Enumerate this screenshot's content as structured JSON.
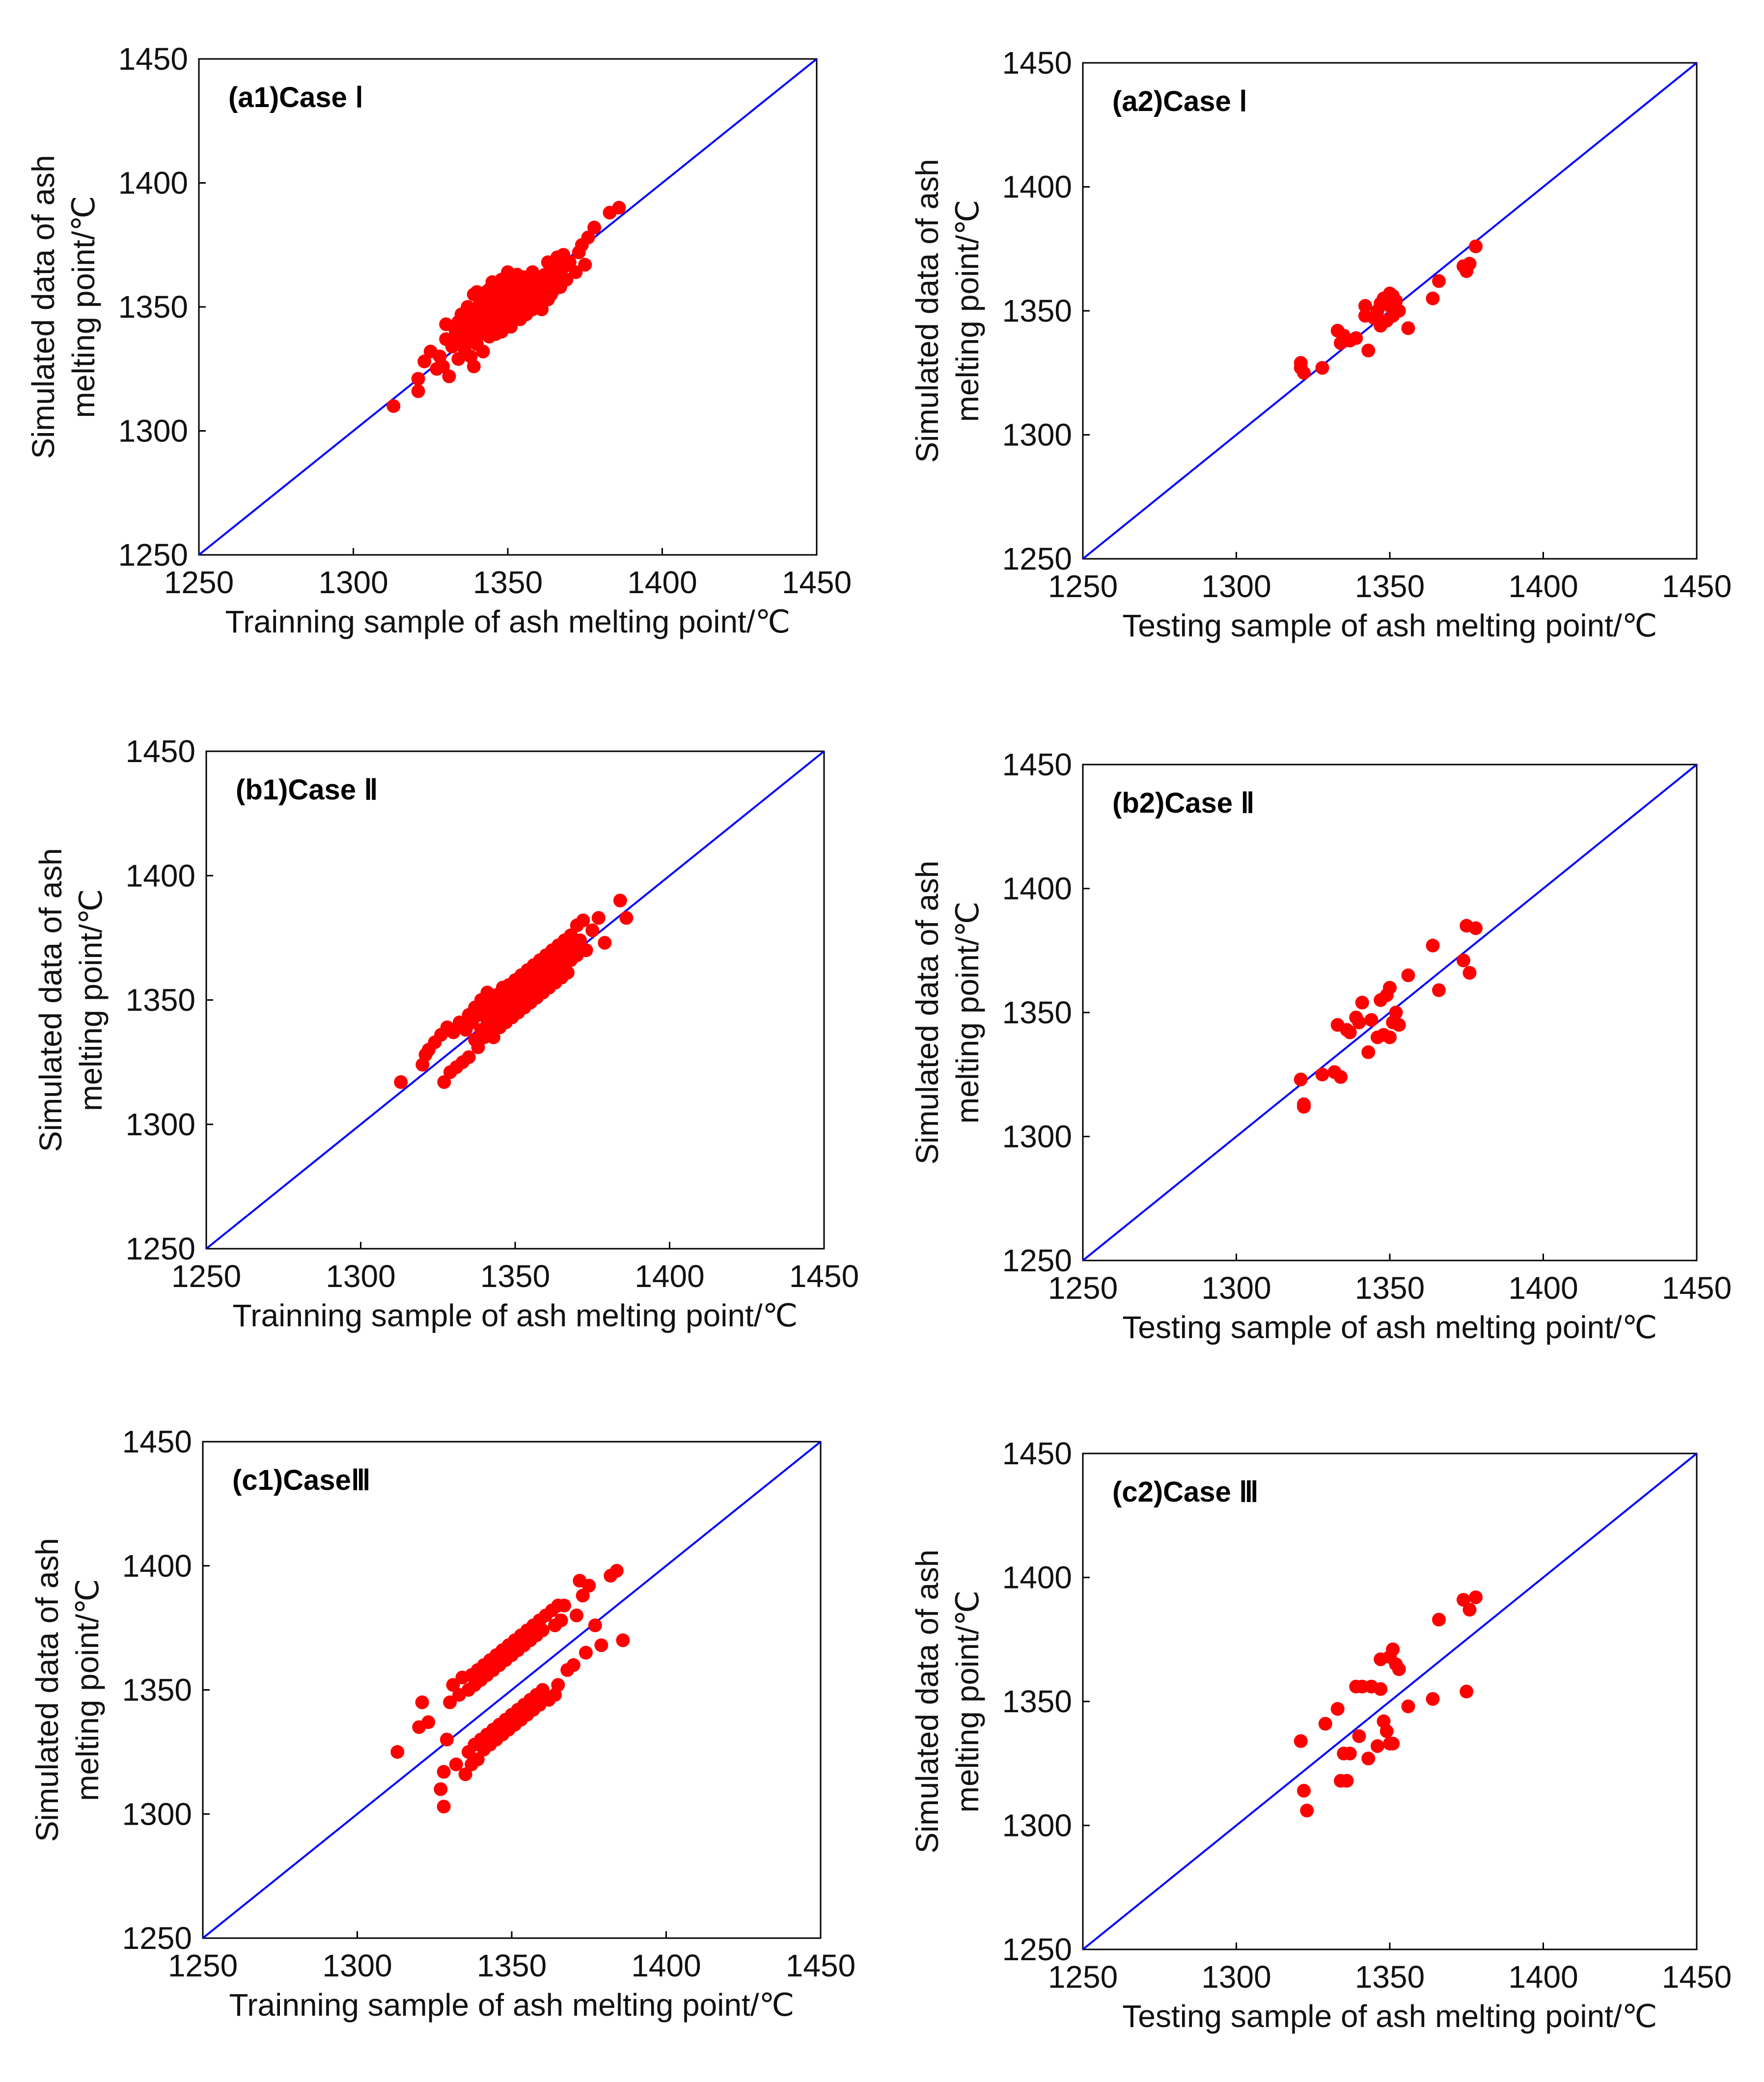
{
  "figure": {
    "marker_color": "#ff0000",
    "line_color": "#0000ff"
  },
  "chart_data": [
    {
      "type": "scatter",
      "title": "(a1)Case Ⅰ",
      "xlabel": "Trainning sample of ash melting point/℃",
      "ylabel": "Simulated data of ash melting point/℃",
      "ylabel_lines": [
        "Simulated data of ash",
        "melting point/℃"
      ],
      "xlim": [
        1250,
        1450
      ],
      "ylim": [
        1250,
        1450
      ],
      "xticks": [
        "1250",
        "1300",
        "1350",
        "1400",
        "1450"
      ],
      "yticks": [
        "1250",
        "1300",
        "1350",
        "1400",
        "1450"
      ],
      "reference_line": [
        [
          1250,
          1250
        ],
        [
          1450,
          1450
        ]
      ],
      "series": [
        {
          "name": "points",
          "x": [
            1313,
            1321,
            1321,
            1323,
            1325,
            1327,
            1328,
            1329,
            1330,
            1330,
            1331,
            1332,
            1333,
            1333,
            1334,
            1334,
            1335,
            1335,
            1336,
            1336,
            1337,
            1337,
            1338,
            1338,
            1338,
            1339,
            1339,
            1339,
            1340,
            1340,
            1340,
            1340,
            1341,
            1341,
            1341,
            1342,
            1342,
            1342,
            1342,
            1343,
            1343,
            1343,
            1343,
            1344,
            1344,
            1344,
            1344,
            1345,
            1345,
            1345,
            1345,
            1346,
            1346,
            1346,
            1346,
            1347,
            1347,
            1347,
            1348,
            1348,
            1348,
            1348,
            1349,
            1349,
            1349,
            1350,
            1350,
            1350,
            1350,
            1351,
            1351,
            1351,
            1352,
            1352,
            1352,
            1353,
            1353,
            1353,
            1354,
            1354,
            1354,
            1355,
            1355,
            1356,
            1356,
            1356,
            1357,
            1357,
            1358,
            1358,
            1358,
            1359,
            1359,
            1360,
            1360,
            1361,
            1361,
            1362,
            1362,
            1363,
            1363,
            1364,
            1364,
            1365,
            1365,
            1366,
            1366,
            1367,
            1368,
            1368,
            1369,
            1370,
            1372,
            1373,
            1374,
            1375,
            1376,
            1378,
            1383,
            1386
          ],
          "y": [
            1310,
            1316,
            1321,
            1328,
            1332,
            1325,
            1330,
            1326,
            1337,
            1343,
            1322,
            1334,
            1341,
            1338,
            1344,
            1329,
            1336,
            1347,
            1340,
            1333,
            1343,
            1350,
            1337,
            1345,
            1330,
            1339,
            1355,
            1326,
            1342,
            1348,
            1335,
            1356,
            1346,
            1339,
            1352,
            1344,
            1355,
            1332,
            1348,
            1340,
            1351,
            1347,
            1356,
            1343,
            1353,
            1338,
            1357,
            1346,
            1350,
            1342,
            1360,
            1344,
            1354,
            1349,
            1339,
            1357,
            1348,
            1352,
            1345,
            1361,
            1340,
            1353,
            1350,
            1356,
            1344,
            1347,
            1358,
            1353,
            1364,
            1349,
            1342,
            1356,
            1352,
            1360,
            1346,
            1355,
            1348,
            1363,
            1351,
            1358,
            1345,
            1354,
            1362,
            1350,
            1357,
            1347,
            1360,
            1352,
            1355,
            1349,
            1364,
            1357,
            1351,
            1362,
            1353,
            1359,
            1349,
            1356,
            1363,
            1353,
            1368,
            1360,
            1355,
            1365,
            1357,
            1362,
            1370,
            1358,
            1366,
            1371,
            1361,
            1368,
            1364,
            1372,
            1375,
            1367,
            1378,
            1382,
            1388,
            1390
          ]
        }
      ]
    },
    {
      "type": "scatter",
      "title": "(a2)Case Ⅰ",
      "xlabel": "Testing sample of ash melting point/℃",
      "ylabel": "Simulated data of ash melting point/℃",
      "ylabel_lines": [
        "Simulated data of ash",
        "melting point/℃"
      ],
      "xlim": [
        1250,
        1450
      ],
      "ylim": [
        1250,
        1450
      ],
      "xticks": [
        "1250",
        "1300",
        "1350",
        "1400",
        "1450"
      ],
      "yticks": [
        "1250",
        "1300",
        "1350",
        "1400",
        "1450"
      ],
      "reference_line": [
        [
          1250,
          1250
        ],
        [
          1450,
          1450
        ]
      ],
      "series": [
        {
          "name": "points",
          "x": [
            1321,
            1321,
            1322,
            1328,
            1333,
            1334,
            1335,
            1337,
            1339,
            1342,
            1342,
            1343,
            1345,
            1346,
            1347,
            1347,
            1348,
            1349,
            1350,
            1350,
            1351,
            1351,
            1352,
            1353,
            1356,
            1364,
            1366,
            1374,
            1375,
            1376,
            1378
          ],
          "y": [
            1329,
            1327,
            1325,
            1327,
            1342,
            1337,
            1340,
            1338,
            1339,
            1352,
            1348,
            1334,
            1347,
            1350,
            1344,
            1353,
            1355,
            1346,
            1352,
            1357,
            1348,
            1356,
            1354,
            1350,
            1343,
            1355,
            1362,
            1368,
            1366,
            1369,
            1376
          ]
        }
      ]
    },
    {
      "type": "scatter",
      "title": "(b1)Case Ⅱ",
      "xlabel": "Trainning sample of ash melting point/℃",
      "ylabel": "Simulated data of ash melting point/℃",
      "ylabel_lines": [
        "Simulated data of ash",
        "melting point/℃"
      ],
      "xlim": [
        1250,
        1450
      ],
      "ylim": [
        1250,
        1450
      ],
      "xticks": [
        "1250",
        "1300",
        "1350",
        "1400",
        "1450"
      ],
      "yticks": [
        "1250",
        "1300",
        "1350",
        "1400",
        "1450"
      ],
      "reference_line": [
        [
          1250,
          1250
        ],
        [
          1450,
          1450
        ]
      ],
      "series": [
        {
          "name": "points",
          "x": [
            1313,
            1320,
            1321,
            1322,
            1324,
            1326,
            1327,
            1328,
            1329,
            1330,
            1331,
            1332,
            1333,
            1334,
            1335,
            1335,
            1336,
            1337,
            1337,
            1338,
            1338,
            1339,
            1339,
            1340,
            1340,
            1341,
            1341,
            1342,
            1342,
            1343,
            1343,
            1344,
            1344,
            1345,
            1345,
            1346,
            1346,
            1347,
            1347,
            1348,
            1348,
            1349,
            1349,
            1350,
            1350,
            1351,
            1351,
            1352,
            1352,
            1353,
            1353,
            1354,
            1354,
            1355,
            1355,
            1356,
            1356,
            1357,
            1357,
            1358,
            1358,
            1359,
            1359,
            1360,
            1360,
            1361,
            1361,
            1362,
            1362,
            1363,
            1363,
            1364,
            1364,
            1365,
            1365,
            1366,
            1366,
            1367,
            1367,
            1368,
            1368,
            1369,
            1370,
            1370,
            1371,
            1372,
            1373,
            1375,
            1377,
            1379,
            1384,
            1386
          ],
          "y": [
            1317,
            1324,
            1328,
            1330,
            1333,
            1336,
            1317,
            1339,
            1321,
            1337,
            1323,
            1341,
            1325,
            1338,
            1344,
            1327,
            1341,
            1334,
            1347,
            1331,
            1344,
            1338,
            1350,
            1335,
            1346,
            1342,
            1353,
            1338,
            1348,
            1345,
            1335,
            1352,
            1342,
            1348,
            1339,
            1355,
            1345,
            1350,
            1341,
            1356,
            1346,
            1352,
            1343,
            1358,
            1348,
            1354,
            1345,
            1360,
            1350,
            1356,
            1347,
            1362,
            1352,
            1358,
            1349,
            1364,
            1354,
            1360,
            1351,
            1366,
            1356,
            1362,
            1353,
            1368,
            1358,
            1364,
            1355,
            1370,
            1360,
            1366,
            1357,
            1372,
            1362,
            1368,
            1359,
            1374,
            1364,
            1370,
            1361,
            1376,
            1366,
            1372,
            1380,
            1368,
            1374,
            1382,
            1370,
            1378,
            1383,
            1373,
            1390,
            1383
          ]
        }
      ]
    },
    {
      "type": "scatter",
      "title": "(b2)Case Ⅱ",
      "xlabel": "Testing sample of ash melting point/℃",
      "ylabel": "Simulated data of ash melting point/℃",
      "ylabel_lines": [
        "Simulated data of ash",
        "melting point/℃"
      ],
      "xlim": [
        1250,
        1450
      ],
      "ylim": [
        1250,
        1450
      ],
      "xticks": [
        "1250",
        "1300",
        "1350",
        "1400",
        "1450"
      ],
      "yticks": [
        "1250",
        "1300",
        "1350",
        "1400",
        "1450"
      ],
      "reference_line": [
        [
          1250,
          1250
        ],
        [
          1450,
          1450
        ]
      ],
      "series": [
        {
          "name": "points",
          "x": [
            1321,
            1322,
            1322,
            1328,
            1332,
            1333,
            1334,
            1336,
            1337,
            1339,
            1340,
            1341,
            1343,
            1344,
            1346,
            1347,
            1348,
            1349,
            1350,
            1350,
            1351,
            1352,
            1353,
            1356,
            1364,
            1366,
            1374,
            1375,
            1376,
            1378
          ],
          "y": [
            1323,
            1313,
            1312,
            1325,
            1326,
            1345,
            1324,
            1343,
            1342,
            1348,
            1346,
            1354,
            1334,
            1347,
            1340,
            1355,
            1341,
            1357,
            1340,
            1360,
            1346,
            1350,
            1345,
            1365,
            1377,
            1359,
            1371,
            1385,
            1366,
            1384
          ]
        }
      ]
    },
    {
      "type": "scatter",
      "title": "(c1)CaseⅢ",
      "xlabel": "Trainning sample of ash melting point/℃",
      "ylabel": "Simulated data of ash melting point/℃",
      "ylabel_lines": [
        "Simulated data of ash",
        "melting point/℃"
      ],
      "xlim": [
        1250,
        1450
      ],
      "ylim": [
        1250,
        1450
      ],
      "xticks": [
        "1250",
        "1300",
        "1350",
        "1400",
        "1450"
      ],
      "yticks": [
        "1250",
        "1300",
        "1350",
        "1400",
        "1450"
      ],
      "reference_line": [
        [
          1250,
          1250
        ],
        [
          1450,
          1450
        ]
      ],
      "series": [
        {
          "name": "points",
          "x": [
            1313,
            1320,
            1321,
            1323,
            1327,
            1328,
            1328,
            1329,
            1330,
            1331,
            1332,
            1333,
            1334,
            1335,
            1336,
            1336,
            1337,
            1337,
            1338,
            1338,
            1339,
            1339,
            1340,
            1340,
            1341,
            1341,
            1342,
            1342,
            1343,
            1343,
            1344,
            1344,
            1345,
            1345,
            1346,
            1346,
            1347,
            1347,
            1348,
            1348,
            1349,
            1349,
            1350,
            1350,
            1351,
            1351,
            1352,
            1352,
            1353,
            1353,
            1354,
            1354,
            1355,
            1355,
            1356,
            1356,
            1357,
            1357,
            1358,
            1358,
            1359,
            1359,
            1360,
            1360,
            1361,
            1362,
            1363,
            1364,
            1364,
            1365,
            1365,
            1366,
            1367,
            1368,
            1370,
            1371,
            1372,
            1373,
            1374,
            1375,
            1377,
            1379,
            1382,
            1384,
            1386
          ],
          "y": [
            1325,
            1335,
            1345,
            1337,
            1310,
            1303,
            1317,
            1330,
            1345,
            1352,
            1320,
            1348,
            1355,
            1316,
            1350,
            1325,
            1356,
            1320,
            1352,
            1328,
            1358,
            1322,
            1354,
            1330,
            1360,
            1326,
            1356,
            1332,
            1362,
            1328,
            1358,
            1334,
            1364,
            1330,
            1360,
            1336,
            1366,
            1332,
            1362,
            1338,
            1368,
            1334,
            1364,
            1340,
            1370,
            1336,
            1366,
            1342,
            1372,
            1338,
            1368,
            1344,
            1374,
            1340,
            1370,
            1346,
            1376,
            1342,
            1372,
            1348,
            1378,
            1344,
            1374,
            1350,
            1380,
            1346,
            1382,
            1348,
            1376,
            1384,
            1352,
            1378,
            1384,
            1358,
            1360,
            1380,
            1394,
            1388,
            1365,
            1392,
            1376,
            1368,
            1396,
            1398,
            1370
          ]
        }
      ]
    },
    {
      "type": "scatter",
      "title": "(c2)Case Ⅲ",
      "xlabel": "Testing sample of ash melting point/℃",
      "ylabel": "Simulated data of ash melting point/℃",
      "ylabel_lines": [
        "Simulated data of ash",
        "melting point/℃"
      ],
      "xlim": [
        1250,
        1450
      ],
      "ylim": [
        1250,
        1450
      ],
      "xticks": [
        "1250",
        "1300",
        "1350",
        "1400",
        "1450"
      ],
      "yticks": [
        "1250",
        "1300",
        "1350",
        "1400",
        "1450"
      ],
      "reference_line": [
        [
          1250,
          1250
        ],
        [
          1450,
          1450
        ]
      ],
      "series": [
        {
          "name": "points",
          "x": [
            1321,
            1322,
            1323,
            1329,
            1333,
            1334,
            1335,
            1336,
            1337,
            1339,
            1340,
            1341,
            1343,
            1344,
            1346,
            1347,
            1347,
            1348,
            1349,
            1350,
            1350,
            1351,
            1351,
            1352,
            1353,
            1356,
            1364,
            1366,
            1374,
            1375,
            1376,
            1378
          ],
          "y": [
            1334,
            1314,
            1306,
            1341,
            1347,
            1318,
            1329,
            1318,
            1329,
            1356,
            1336,
            1356,
            1327,
            1356,
            1332,
            1367,
            1355,
            1342,
            1338,
            1368,
            1333,
            1371,
            1333,
            1365,
            1363,
            1348,
            1351,
            1383,
            1391,
            1354,
            1387,
            1392
          ]
        }
      ]
    }
  ]
}
